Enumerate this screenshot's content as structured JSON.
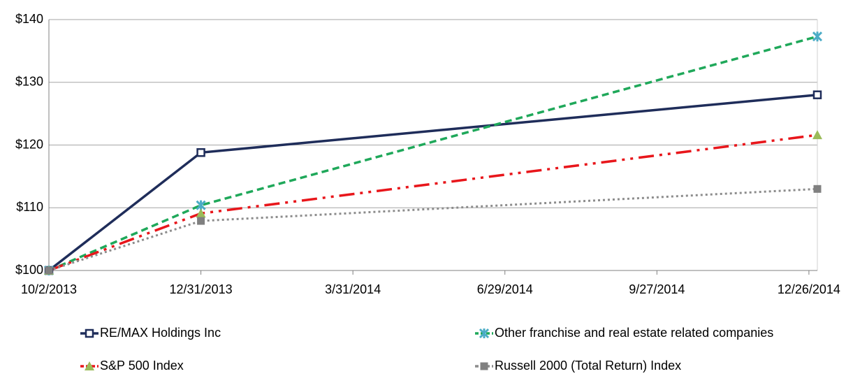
{
  "chart_data": {
    "type": "line",
    "x": [
      "2013-10-02",
      "2013-12-31",
      "2014-12-31"
    ],
    "xlim": [
      "2013-10-02",
      "2014-12-31"
    ],
    "xticks": [
      {
        "value": "2013-10-02",
        "label": "10/2/2013"
      },
      {
        "value": "2013-12-31",
        "label": "12/31/2013"
      },
      {
        "value": "2014-03-31",
        "label": "3/31/2014"
      },
      {
        "value": "2014-06-29",
        "label": "6/29/2014"
      },
      {
        "value": "2014-09-27",
        "label": "9/27/2014"
      },
      {
        "value": "2014-12-26",
        "label": "12/26/2014"
      }
    ],
    "ylim": [
      100,
      140
    ],
    "yticks": [
      {
        "value": 100,
        "label": "$100"
      },
      {
        "value": 110,
        "label": "$110"
      },
      {
        "value": 120,
        "label": "$120"
      },
      {
        "value": 130,
        "label": "$130"
      },
      {
        "value": 140,
        "label": "$140"
      }
    ],
    "grid": true,
    "legend": "bottom",
    "series": [
      {
        "name": "RE/MAX Holdings Inc",
        "color": "#1f2d5a",
        "dash": "solid",
        "marker": "square",
        "marker_color": "#1f2d5a",
        "values": [
          100,
          118.8,
          128.0
        ]
      },
      {
        "name": "Other franchise and real estate related companies",
        "color": "#1fa85a",
        "dash": "dashed",
        "marker": "x",
        "marker_color": "#4bacc6",
        "values": [
          100,
          110.4,
          137.3
        ]
      },
      {
        "name": "S&P 500 Index",
        "color": "#e8161b",
        "dash": "dashdot",
        "marker": "triangle",
        "marker_color": "#9bbb59",
        "values": [
          100,
          109.1,
          121.6
        ]
      },
      {
        "name": "Russell 2000 (Total Return) Index",
        "color": "#8c8c8c",
        "dash": "dotted",
        "marker": "filled-square",
        "marker_color": "#808080",
        "values": [
          100,
          107.9,
          113.0
        ]
      }
    ]
  }
}
